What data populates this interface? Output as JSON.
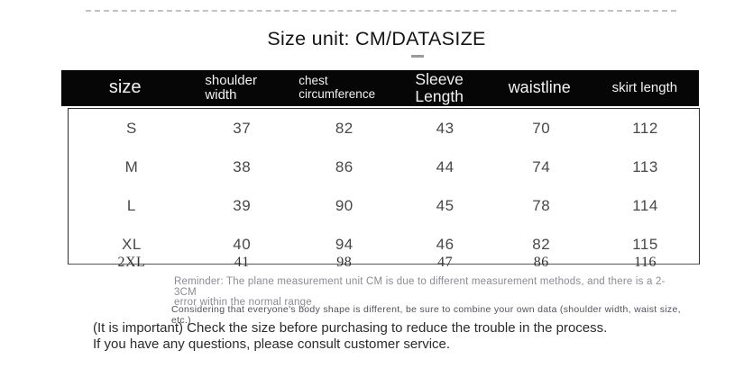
{
  "title": {
    "text": "Size unit: CM/DATASIZE"
  },
  "table": {
    "headers": [
      "size",
      "shoulder width",
      "chest circumference",
      "Sleeve Length",
      "waistline",
      "skirt length"
    ],
    "rows": [
      [
        "S",
        "37",
        "82",
        "43",
        "70",
        "112"
      ],
      [
        "M",
        "38",
        "86",
        "44",
        "74",
        "113"
      ],
      [
        "L",
        "39",
        "90",
        "45",
        "78",
        "114"
      ],
      [
        "XL",
        "40",
        "94",
        "46",
        "82",
        "115"
      ],
      [
        "2XL",
        "41",
        "98",
        "47",
        "86",
        "116"
      ]
    ]
  },
  "notes": {
    "reminder_line1": "Reminder: The plane measurement unit CM is due to different measurement methods, and there is a 2-3CM",
    "reminder_line2": "error within the normal range",
    "considering": "Considering that everyone's body shape is different, be sure to combine your own data (shoulder width, waist size, etc.)",
    "important_line1": "(It is important) Check the size before purchasing to reduce the trouble in the process.",
    "important_line2": "If you have any questions, please consult customer service."
  }
}
